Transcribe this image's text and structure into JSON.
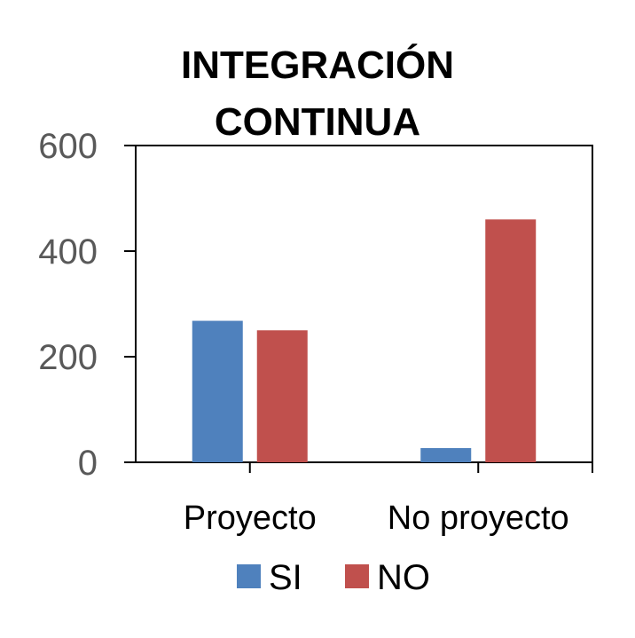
{
  "chart_data": {
    "type": "bar",
    "title": [
      "INTEGRACIÓN",
      "CONTINUA"
    ],
    "categories": [
      "Proyecto",
      "No proyecto"
    ],
    "series": [
      {
        "name": "SI",
        "color": "#4F81BD",
        "values": [
          268,
          27
        ]
      },
      {
        "name": "NO",
        "color": "#C0504D",
        "values": [
          250,
          460
        ]
      }
    ],
    "ylim": [
      0,
      600
    ],
    "yticks": [
      0,
      200,
      400,
      600
    ],
    "grid": false,
    "legend": "bottom"
  }
}
